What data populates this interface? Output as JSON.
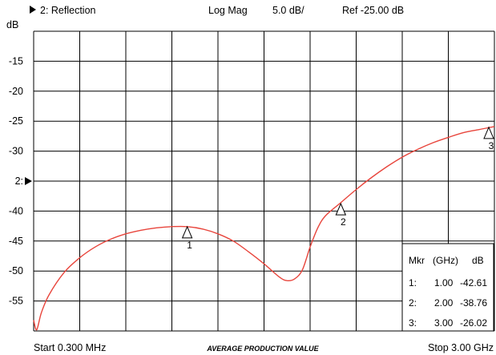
{
  "header": {
    "trace_label": "2: Reflection",
    "format": "Log Mag",
    "scale": "5.0 dB/",
    "reference": "Ref -25.00 dB"
  },
  "footer": {
    "start": "Start 0.300 MHz",
    "center": "AVERAGE PRODUCTION VALUE",
    "stop": "Stop 3.00 GHz"
  },
  "chart_data": {
    "type": "line",
    "ylabel": "dB",
    "x_unit": "GHz",
    "xlim": [
      0.0003,
      3.0
    ],
    "ylim": [
      -60,
      -10
    ],
    "y_ticks": [
      {
        "value": -15,
        "label": "-15"
      },
      {
        "value": -20,
        "label": "-20"
      },
      {
        "value": -25,
        "label": "-25"
      },
      {
        "value": -30,
        "label": "-30"
      },
      {
        "value": -35,
        "label": "2:"
      },
      {
        "value": -40,
        "label": "-40"
      },
      {
        "value": -45,
        "label": "-45"
      },
      {
        "value": -50,
        "label": "-50"
      },
      {
        "value": -55,
        "label": "-55"
      }
    ],
    "reference_marker": {
      "value": -35,
      "label": "2:"
    },
    "grid": {
      "vertical_divisions": 10,
      "horizontal_divisions": 10
    },
    "series": [
      {
        "color": "#e8453c",
        "x": [
          0.0003,
          0.02,
          0.05,
          0.1,
          0.2,
          0.3,
          0.4,
          0.5,
          0.6,
          0.7,
          0.8,
          0.9,
          1.0,
          1.1,
          1.2,
          1.3,
          1.4,
          1.5,
          1.6,
          1.65,
          1.7,
          1.75,
          1.8,
          1.85,
          1.9,
          2.0,
          2.1,
          2.2,
          2.3,
          2.4,
          2.5,
          2.6,
          2.7,
          2.8,
          2.9,
          3.0
        ],
        "y": [
          -58.2,
          -59.8,
          -57.0,
          -54.0,
          -50.2,
          -47.8,
          -46.0,
          -44.7,
          -43.8,
          -43.2,
          -42.8,
          -42.6,
          -42.6,
          -43.0,
          -43.8,
          -45.0,
          -46.8,
          -48.8,
          -51.0,
          -51.6,
          -51.3,
          -49.8,
          -46.0,
          -42.8,
          -40.8,
          -38.6,
          -36.4,
          -34.4,
          -32.6,
          -31.0,
          -29.7,
          -28.6,
          -27.7,
          -26.9,
          -26.4,
          -25.9
        ]
      }
    ],
    "markers": [
      {
        "id": "1",
        "x": 1.0,
        "y": -42.61
      },
      {
        "id": "2",
        "x": 2.0,
        "y": -38.76
      },
      {
        "id": "3",
        "x": 3.0,
        "y": -26.02
      }
    ],
    "marker_table": {
      "headers": [
        "Mkr",
        "(GHz)",
        "dB"
      ],
      "rows": [
        {
          "label": "1:",
          "freq": "1.00",
          "db": "-42.61"
        },
        {
          "label": "2:",
          "freq": "2.00",
          "db": "-38.76"
        },
        {
          "label": "3:",
          "freq": "3.00",
          "db": "-26.02"
        }
      ]
    }
  }
}
